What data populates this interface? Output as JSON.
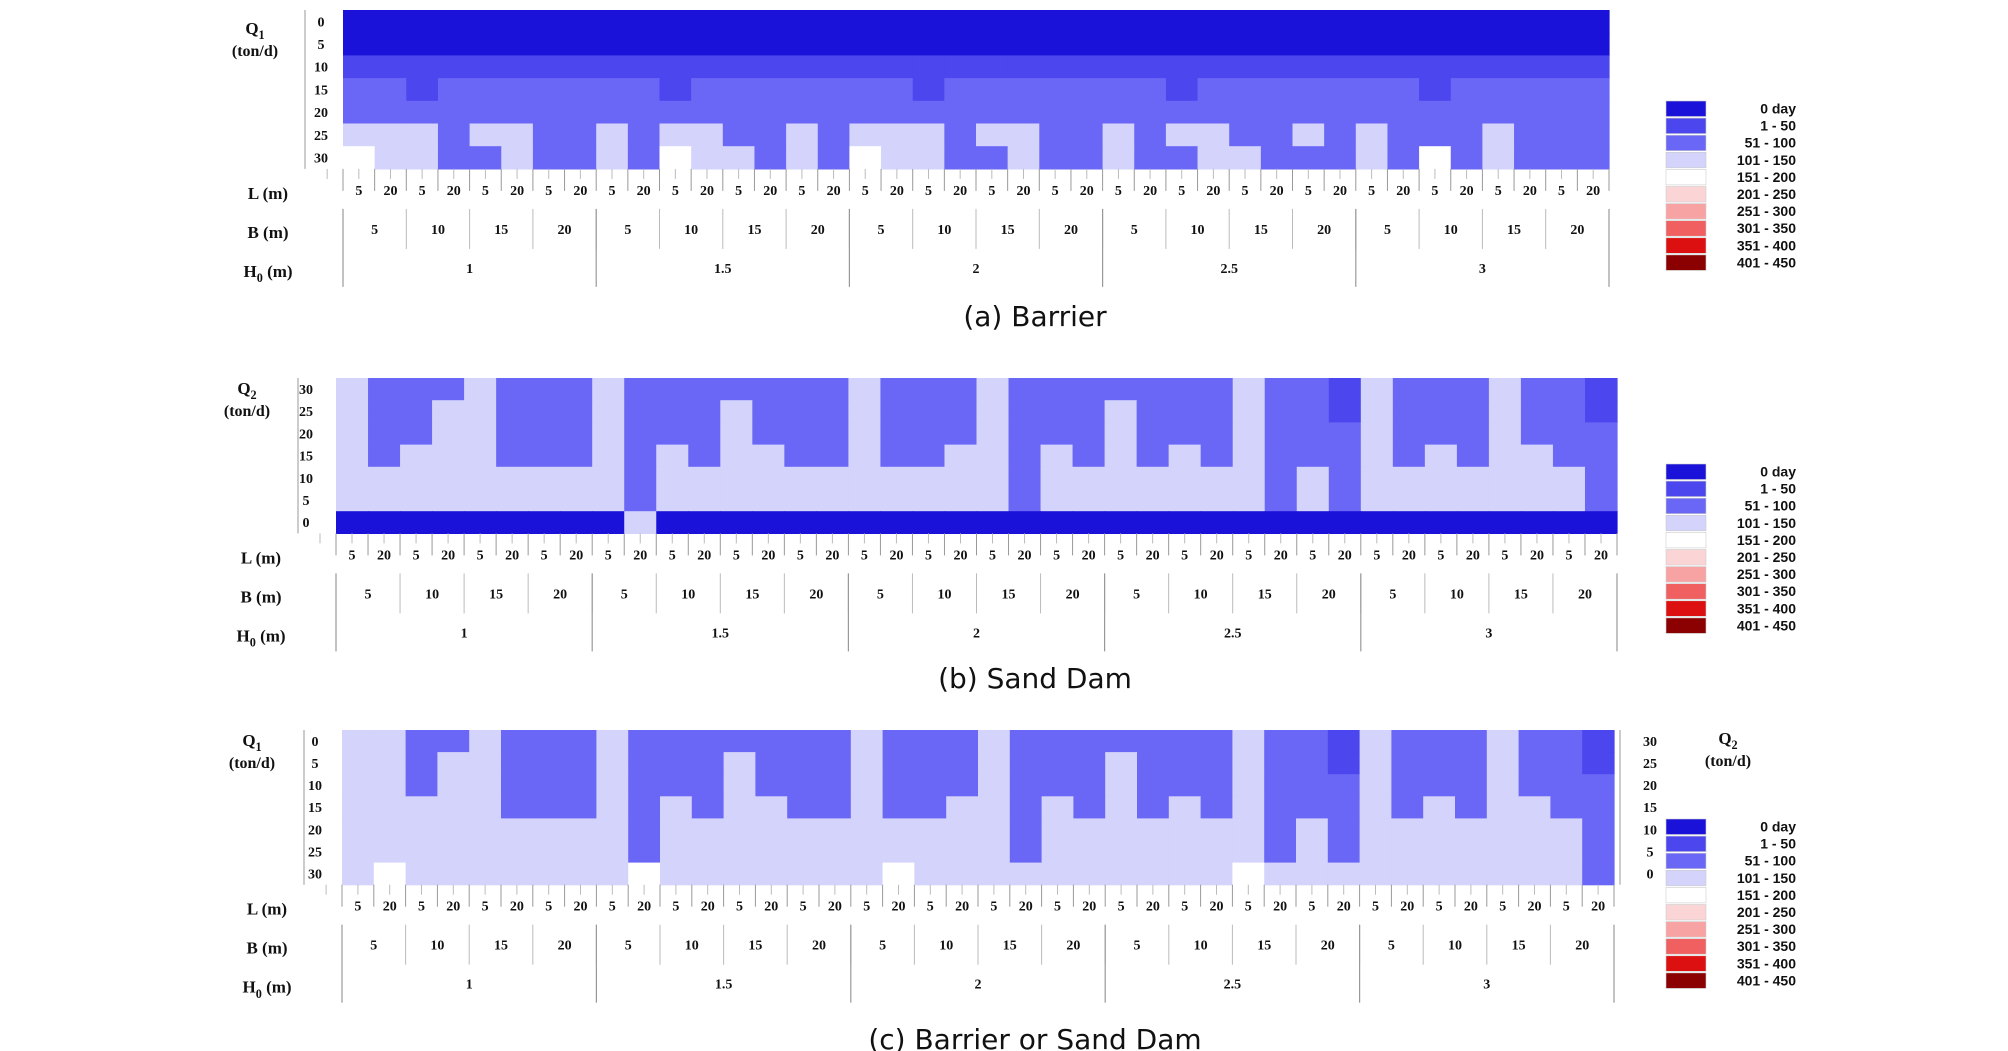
{
  "palette": {
    "0": "#1a12d8",
    "1": "#4b46ee",
    "2": "#6b67f6",
    "3": "#d3d3fb",
    "4": "#ffffff",
    "5": "#fbd5d5",
    "6": "#f7a3a3",
    "7": "#f06060",
    "8": "#dc1010",
    "9": "#8b0000"
  },
  "legend": {
    "entries": [
      "0 day",
      "1 -  50",
      "51 - 100",
      "101 - 150",
      "151 - 200",
      "201 - 250",
      "251 - 300",
      "301 - 350",
      "351 - 400",
      "401 - 450"
    ],
    "color_keys": [
      "0",
      "1",
      "2",
      "3",
      "4",
      "5",
      "6",
      "7",
      "8",
      "9"
    ]
  },
  "chart_data": [
    {
      "type": "heatmap",
      "caption": "(a) Barrier",
      "y_label": "Q1",
      "y_unit": "(ton/d)",
      "y_ticks": [
        "0",
        "5",
        "10",
        "15",
        "20",
        "25",
        "30"
      ],
      "y_order": "top-down",
      "x_levels": [
        {
          "label": "L (m)",
          "values": [
            "5",
            "20"
          ]
        },
        {
          "label": "B (m)",
          "values": [
            "5",
            "10",
            "15",
            "20"
          ]
        },
        {
          "label": "H0 (m)",
          "values": [
            "1",
            "1.5",
            "2",
            "2.5",
            "3"
          ]
        }
      ],
      "value_encoding": "one digit per column, classes 0-9 map to legend entries",
      "rows": [
        "0000000000000000000000000000000000000000",
        "0000000000000000000000000000000000000000",
        "1111111111111111111111111111111111111111",
        "2212222222122222221222222212222222122222",
        "2222222222222222222222222222222222222222",
        "3332332232332232333233223233223232223222",
        "4332232232433232433223223223322232423222"
      ]
    },
    {
      "type": "heatmap",
      "caption": "(b) Sand Dam",
      "y_label": "Q2",
      "y_unit": "(ton/d)",
      "y_ticks": [
        "30",
        "25",
        "20",
        "15",
        "10",
        "5",
        "0"
      ],
      "y_order": "top-down",
      "x_levels": [
        {
          "label": "L (m)",
          "values": [
            "5",
            "20"
          ]
        },
        {
          "label": "B (m)",
          "values": [
            "5",
            "10",
            "15",
            "20"
          ]
        },
        {
          "label": "H0 (m)",
          "values": [
            "1",
            "1.5",
            "2",
            "2.5",
            "3"
          ]
        }
      ],
      "value_encoding": "one digit per column, classes 0-9 map to legend entries",
      "rows": [
        "3222322232222222322232222222322132223221",
        "3223322232223222322232223222322132223221",
        "3223322232223222322232223222322232223222",
        "3233322232323322322332323232322232323322",
        "3333333332333333333332333333323233333332",
        "3333333332333333333332333333323233333332",
        "0000000003000000000000000000000000000000"
      ]
    },
    {
      "type": "heatmap",
      "caption": "(c) Barrier or Sand Dam",
      "y_label": "Q1",
      "y_unit": "(ton/d)",
      "y_ticks": [
        "0",
        "5",
        "10",
        "15",
        "20",
        "25",
        "30"
      ],
      "y_label_right": "Q2",
      "y_unit_right": "(ton/d)",
      "y_ticks_right": [
        "30",
        "25",
        "20",
        "15",
        "10",
        "5",
        "0"
      ],
      "y_order": "top-down",
      "x_levels": [
        {
          "label": "L (m)",
          "values": [
            "5",
            "20"
          ]
        },
        {
          "label": "B (m)",
          "values": [
            "5",
            "10",
            "15",
            "20"
          ]
        },
        {
          "label": "H0 (m)",
          "values": [
            "1",
            "1.5",
            "2",
            "2.5",
            "3"
          ]
        }
      ],
      "value_encoding": "one digit per column, classes 0-9 map to legend entries",
      "rows": [
        "3322322232222222322232222222322132223221",
        "3323322232223222322232223222322132223221",
        "3323322232223222322232223222322232223222",
        "3333322232323322322332323232322232323322",
        "3333333332333333333332333333323233333332",
        "3333333332333333333332333333323233333332",
        "3433333334333333343333333333433333333332"
      ]
    }
  ]
}
